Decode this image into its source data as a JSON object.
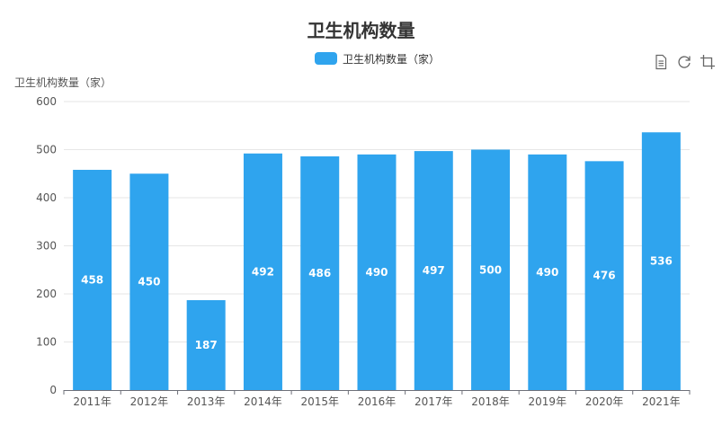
{
  "chart_data": {
    "type": "bar",
    "title": "卫生机构数量",
    "ylabel": "卫生机构数量（家）",
    "xlabel": "",
    "categories": [
      "2011年",
      "2012年",
      "2013年",
      "2014年",
      "2015年",
      "2016年",
      "2017年",
      "2018年",
      "2019年",
      "2020年",
      "2021年"
    ],
    "series": [
      {
        "name": "卫生机构数量（家）",
        "values": [
          458,
          450,
          187,
          492,
          486,
          490,
          497,
          500,
          490,
          476,
          536
        ]
      }
    ],
    "ylim": [
      0,
      600
    ],
    "yticks": [
      0,
      100,
      200,
      300,
      400,
      500,
      600
    ],
    "grid": true,
    "legend_position": "top-center",
    "data_labels": "inside"
  },
  "colors": {
    "bar": "#2fa4ee",
    "grid": "#e6e6e6",
    "axis": "#6e7079"
  },
  "toolbox": {
    "icons": [
      "data-view-icon",
      "restore-icon",
      "crop-icon"
    ]
  }
}
